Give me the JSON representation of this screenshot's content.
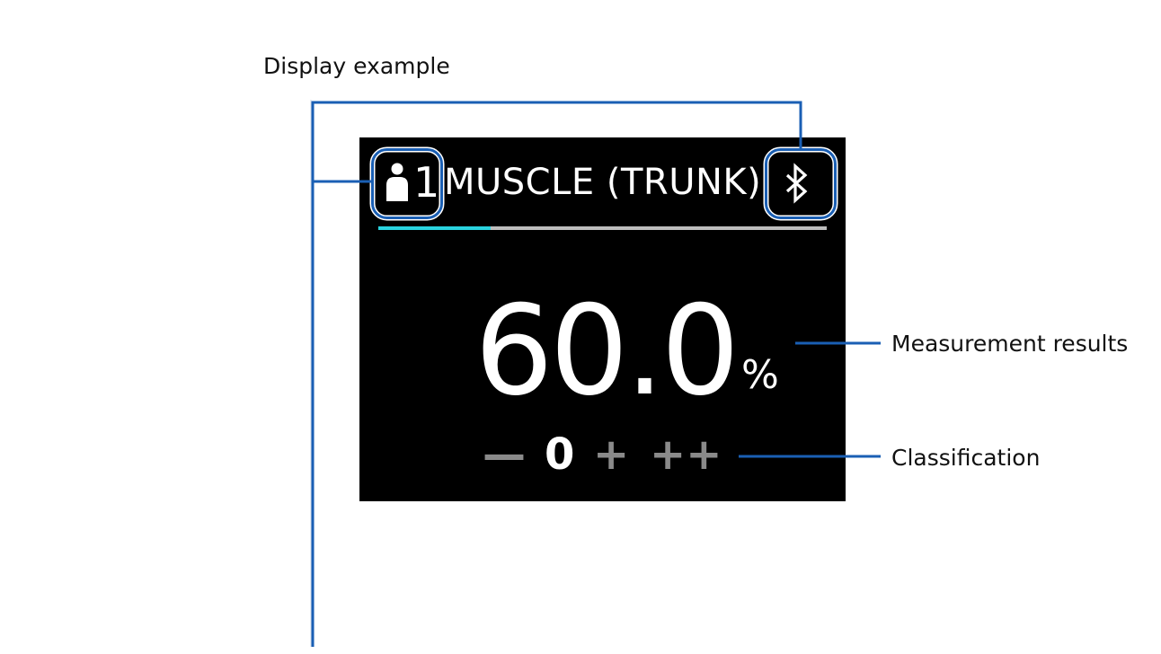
{
  "captions": {
    "display_example": "Display example",
    "measurement_results": "Measurement results",
    "classification": "Classification"
  },
  "display": {
    "user_number": "1",
    "title": "MUSCLE (TRUNK)",
    "progress": 0.25,
    "value": "60.0",
    "unit": "%",
    "classification_levels": [
      "—",
      "0",
      "+",
      "++"
    ],
    "active_level": "0"
  },
  "icons": {
    "user": "person-icon",
    "bluetooth": "bluetooth-icon"
  },
  "colors": {
    "screen_background": "#000000",
    "callout_line": "#1a5fb4",
    "progress_accent": "#2ad4e0",
    "inactive_level": "#8a8a8a"
  }
}
